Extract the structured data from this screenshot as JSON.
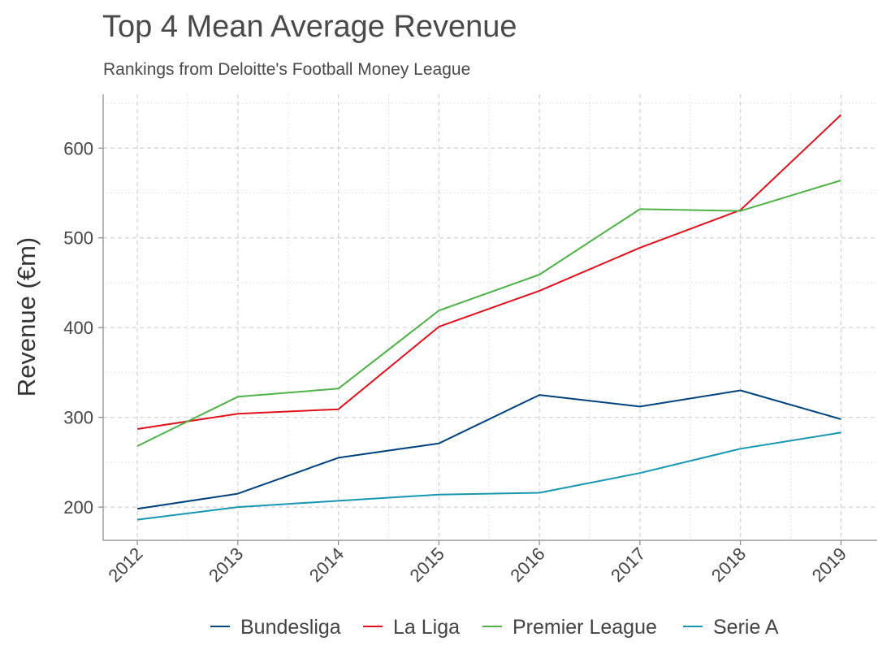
{
  "chart_data": {
    "type": "line",
    "title": "Top 4 Mean Average Revenue",
    "subtitle": "Rankings from Deloitte's Football Money League",
    "xlabel": "",
    "ylabel": "Revenue (€m)",
    "x": [
      2012,
      2013,
      2014,
      2015,
      2016,
      2017,
      2018,
      2019
    ],
    "x_tick_labels": [
      "2012",
      "2013",
      "2014",
      "2015",
      "2016",
      "2017",
      "2018",
      "2019"
    ],
    "y_ticks": [
      200,
      300,
      400,
      500,
      600
    ],
    "y_tick_labels": [
      "200",
      "300",
      "400",
      "500",
      "600"
    ],
    "ylim": [
      163,
      660
    ],
    "xlim": [
      2011.66,
      2019.36
    ],
    "grid": true,
    "legend_position": "bottom",
    "series": [
      {
        "name": "Bundesliga",
        "color": "#00427f",
        "values": [
          198,
          215,
          255,
          271,
          325,
          312,
          330,
          298
        ]
      },
      {
        "name": "La Liga",
        "color": "#e0111b",
        "values": [
          287,
          304,
          309,
          401,
          441,
          489,
          531,
          637
        ]
      },
      {
        "name": "Premier League",
        "color": "#4db347",
        "values": [
          268,
          323,
          332,
          419,
          459,
          532,
          530,
          564
        ]
      },
      {
        "name": "Serie A",
        "color": "#1596b3",
        "values": [
          186,
          200,
          207,
          214,
          216,
          238,
          265,
          283
        ]
      }
    ]
  }
}
